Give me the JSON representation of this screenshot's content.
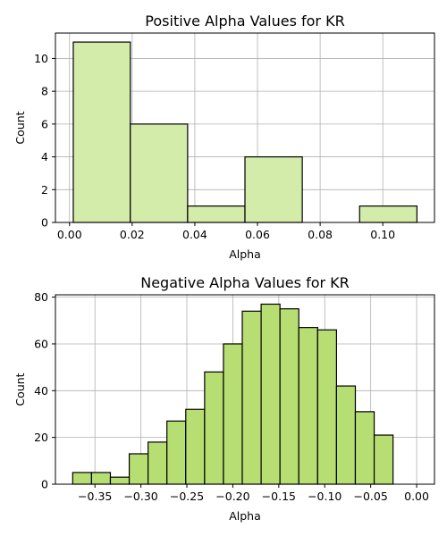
{
  "chart_data": [
    {
      "type": "histogram",
      "title": "Positive Alpha Values for KR",
      "xlabel": "Alpha",
      "ylabel": "Count",
      "xlim": [
        -0.0045,
        0.1165
      ],
      "ylim": [
        0,
        11.55
      ],
      "xticks": [
        0.0,
        0.02,
        0.04,
        0.06,
        0.08,
        0.1
      ],
      "xtick_labels": [
        "0.00",
        "0.02",
        "0.04",
        "0.06",
        "0.08",
        "0.10"
      ],
      "yticks": [
        0,
        2,
        4,
        6,
        8,
        10
      ],
      "ytick_labels": [
        "0",
        "2",
        "4",
        "6",
        "8",
        "10"
      ],
      "bins": [
        {
          "x0": 0.0012,
          "x1": 0.0194,
          "count": 11
        },
        {
          "x0": 0.0194,
          "x1": 0.0377,
          "count": 6
        },
        {
          "x0": 0.0377,
          "x1": 0.056,
          "count": 1
        },
        {
          "x0": 0.056,
          "x1": 0.0743,
          "count": 4
        },
        {
          "x0": 0.0743,
          "x1": 0.0926,
          "count": 0
        },
        {
          "x0": 0.0926,
          "x1": 0.1109,
          "count": 1
        }
      ],
      "bar_color": "#d3ecaa",
      "edge_color": "#000000",
      "grid": true
    },
    {
      "type": "histogram",
      "title": "Negative Alpha Values for KR",
      "xlabel": "Alpha",
      "ylabel": "Count",
      "xlim": [
        -0.393,
        0.0194
      ],
      "ylim": [
        0,
        81
      ],
      "xticks": [
        -0.35,
        -0.3,
        -0.25,
        -0.2,
        -0.15,
        -0.1,
        -0.05,
        0.0
      ],
      "xtick_labels": [
        "−0.35",
        "−0.30",
        "−0.25",
        "−0.20",
        "−0.15",
        "−0.10",
        "−0.05",
        "0.00"
      ],
      "yticks": [
        0,
        20,
        40,
        60,
        80
      ],
      "ytick_labels": [
        "0",
        "20",
        "40",
        "60",
        "80"
      ],
      "bins": [
        {
          "x0": -0.3742,
          "x1": -0.3537,
          "count": 5
        },
        {
          "x0": -0.3537,
          "x1": -0.3332,
          "count": 5
        },
        {
          "x0": -0.3332,
          "x1": -0.3127,
          "count": 3
        },
        {
          "x0": -0.3127,
          "x1": -0.2922,
          "count": 13
        },
        {
          "x0": -0.2922,
          "x1": -0.2717,
          "count": 18
        },
        {
          "x0": -0.2717,
          "x1": -0.2512,
          "count": 27
        },
        {
          "x0": -0.2512,
          "x1": -0.2307,
          "count": 32
        },
        {
          "x0": -0.2307,
          "x1": -0.2102,
          "count": 48
        },
        {
          "x0": -0.2102,
          "x1": -0.1897,
          "count": 60
        },
        {
          "x0": -0.1897,
          "x1": -0.1692,
          "count": 74
        },
        {
          "x0": -0.1692,
          "x1": -0.1487,
          "count": 77
        },
        {
          "x0": -0.1487,
          "x1": -0.1282,
          "count": 75
        },
        {
          "x0": -0.1282,
          "x1": -0.1077,
          "count": 67
        },
        {
          "x0": -0.1077,
          "x1": -0.0872,
          "count": 66
        },
        {
          "x0": -0.0872,
          "x1": -0.0667,
          "count": 42
        },
        {
          "x0": -0.0667,
          "x1": -0.0462,
          "count": 31
        },
        {
          "x0": -0.0462,
          "x1": -0.0257,
          "count": 21
        },
        {
          "x0": -0.0257,
          "x1": -0.0052,
          "count": 0
        }
      ],
      "bar_color": "#b6de72",
      "edge_color": "#000000",
      "grid": true
    }
  ]
}
